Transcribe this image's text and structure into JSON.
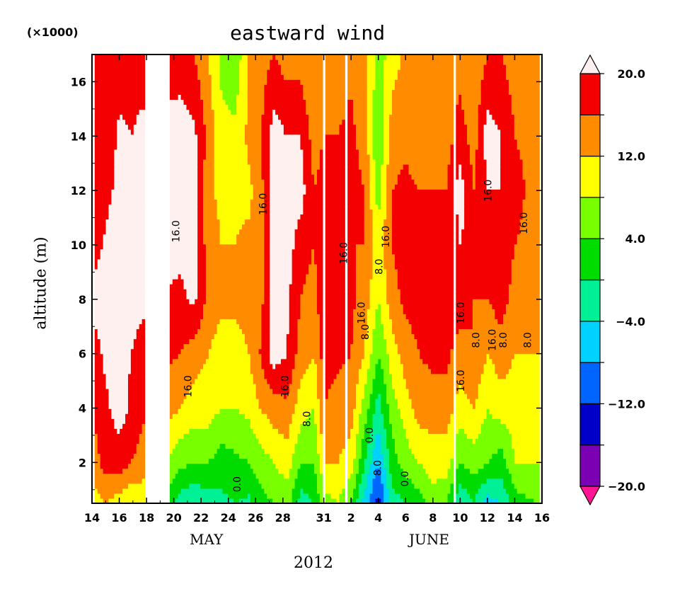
{
  "chart_data": {
    "type": "heatmap",
    "title": "eastward wind",
    "ylabel": "altitude (m)",
    "y_scale_note": "(×1000)",
    "xlabel_year": "2012",
    "months": [
      {
        "label": "MAY",
        "center_day": 23
      },
      {
        "label": "JUNE",
        "center_day": 42
      }
    ],
    "x_range_days": [
      14,
      47
    ],
    "x_ticks": [
      {
        "day": 14,
        "label": "14"
      },
      {
        "day": 16,
        "label": "16"
      },
      {
        "day": 18,
        "label": "18"
      },
      {
        "day": 20,
        "label": "20"
      },
      {
        "day": 22,
        "label": "22"
      },
      {
        "day": 24,
        "label": "24"
      },
      {
        "day": 26,
        "label": "26"
      },
      {
        "day": 28,
        "label": "28"
      },
      {
        "day": 31,
        "label": "31"
      },
      {
        "day": 33,
        "label": "2"
      },
      {
        "day": 35,
        "label": "4"
      },
      {
        "day": 37,
        "label": "6"
      },
      {
        "day": 39,
        "label": "8"
      },
      {
        "day": 41,
        "label": "10"
      },
      {
        "day": 43,
        "label": "12"
      },
      {
        "day": 45,
        "label": "14"
      },
      {
        "day": 47,
        "label": "16"
      }
    ],
    "y_range": [
      0.5,
      17
    ],
    "y_ticks": [
      2,
      4,
      6,
      8,
      10,
      12,
      14,
      16
    ],
    "colorbar": {
      "levels": [
        -24,
        -20,
        -16,
        -12,
        -8,
        -4,
        0,
        4,
        8,
        12,
        16,
        20,
        24
      ],
      "colors": [
        "#ff1493",
        "#7b00b4",
        "#0000c8",
        "#0064ff",
        "#00d2ff",
        "#00f096",
        "#00dc00",
        "#78ff00",
        "#ffff00",
        "#ff8c00",
        "#f50000",
        "#fff0f0"
      ],
      "labels": [
        {
          "value": -20,
          "text": "−20.0"
        },
        {
          "value": -12,
          "text": "−12.0"
        },
        {
          "value": -4,
          "text": "−4.0"
        },
        {
          "value": 4,
          "text": "4.0"
        },
        {
          "value": 12,
          "text": "12.0"
        },
        {
          "value": 20,
          "text": "20.0"
        }
      ]
    },
    "columns": [
      {
        "day": 14.2,
        "profile": [
          10,
          14,
          17,
          18,
          22,
          18,
          17,
          17,
          16
        ]
      },
      {
        "day": 15.0,
        "profile": [
          12,
          18,
          19,
          21,
          22,
          21,
          18,
          16,
          16
        ]
      },
      {
        "day": 16.0,
        "profile": [
          10,
          18,
          22,
          22,
          24,
          24,
          22,
          21,
          18
        ]
      },
      {
        "day": 16.9,
        "profile": [
          8,
          16,
          19,
          20,
          22,
          21,
          22,
          20,
          17
        ]
      },
      {
        "day": 17.7,
        "profile": [
          10,
          14,
          17,
          18,
          21,
          22,
          22,
          22,
          16
        ]
      },
      {
        "day": 20.5,
        "profile": [
          -2,
          5,
          12,
          16,
          19,
          21,
          22,
          22,
          18
        ]
      },
      {
        "day": 21.5,
        "profile": [
          -4,
          4,
          10,
          14,
          21,
          22,
          22,
          21,
          16
        ]
      },
      {
        "day": 22.5,
        "profile": [
          -2,
          4,
          10,
          12,
          15,
          14,
          13,
          15,
          12
        ]
      },
      {
        "day": 23.5,
        "profile": [
          -1,
          2,
          8,
          10,
          13,
          12,
          11,
          9,
          7
        ]
      },
      {
        "day": 24.5,
        "profile": [
          0,
          3,
          8,
          10,
          13,
          12,
          11,
          9,
          5
        ]
      },
      {
        "day": 25.5,
        "profile": [
          -1,
          4,
          9,
          12,
          14,
          13,
          11,
          13,
          12
        ]
      },
      {
        "day": 26.3,
        "profile": [
          2,
          6,
          12,
          16,
          14,
          14,
          14,
          15,
          14
        ]
      },
      {
        "day": 27.3,
        "profile": [
          4,
          8,
          14,
          22,
          22,
          22,
          22,
          22,
          16
        ]
      },
      {
        "day": 28.3,
        "profile": [
          6,
          10,
          15,
          20,
          21,
          22,
          21,
          20,
          14
        ]
      },
      {
        "day": 29.3,
        "profile": [
          -2,
          4,
          10,
          14,
          16,
          18,
          22,
          20,
          14
        ]
      },
      {
        "day": 30.3,
        "profile": [
          0,
          4,
          8,
          12,
          14,
          16,
          16,
          14,
          12
        ]
      },
      {
        "day": 31.0,
        "profile": [
          6,
          12,
          16,
          18,
          20,
          20,
          18,
          16,
          14
        ]
      },
      {
        "day": 32.0,
        "profile": [
          8,
          12,
          14,
          17,
          18,
          17,
          18,
          16,
          14
        ]
      },
      {
        "day": 33.0,
        "profile": [
          4,
          10,
          14,
          16,
          17,
          16,
          18,
          17,
          15
        ]
      },
      {
        "day": 34.0,
        "profile": [
          -6,
          0,
          6,
          12,
          14,
          16,
          16,
          14,
          14
        ]
      },
      {
        "day": 35.0,
        "profile": [
          -14,
          -8,
          -2,
          4,
          8,
          10,
          6,
          4,
          6
        ]
      },
      {
        "day": 36.0,
        "profile": [
          -2,
          2,
          6,
          10,
          14,
          16,
          16,
          14,
          10
        ]
      },
      {
        "day": 37.0,
        "profile": [
          0,
          6,
          10,
          14,
          17,
          19,
          17,
          15,
          13
        ]
      },
      {
        "day": 38.0,
        "profile": [
          2,
          8,
          14,
          16,
          18,
          18,
          16,
          14,
          13
        ]
      },
      {
        "day": 39.0,
        "profile": [
          6,
          10,
          14,
          17,
          18,
          17,
          16,
          14,
          14
        ]
      },
      {
        "day": 40.0,
        "profile": [
          4,
          10,
          14,
          17,
          18,
          16,
          16,
          14,
          14
        ]
      },
      {
        "day": 41.0,
        "profile": [
          -4,
          4,
          10,
          14,
          18,
          20,
          22,
          18,
          14
        ]
      },
      {
        "day": 42.0,
        "profile": [
          0,
          6,
          12,
          16,
          16,
          18,
          16,
          14,
          12
        ]
      },
      {
        "day": 43.0,
        "profile": [
          -6,
          4,
          8,
          12,
          16,
          18,
          20,
          22,
          16
        ]
      },
      {
        "day": 44.0,
        "profile": [
          -4,
          2,
          10,
          14,
          18,
          20,
          20,
          20,
          16
        ]
      },
      {
        "day": 45.0,
        "profile": [
          2,
          8,
          10,
          12,
          14,
          16,
          18,
          16,
          14
        ]
      },
      {
        "day": 46.5,
        "profile": [
          4,
          8,
          10,
          12,
          14,
          14,
          14,
          14,
          12
        ]
      }
    ],
    "profile_altitudes": [
      0.5,
      2,
      4,
      6,
      8,
      10,
      12,
      14,
      17
    ],
    "gaps": [
      {
        "from_day": 17.9,
        "to_day": 19.8
      },
      {
        "from_day": 30.95,
        "to_day": 31.05
      },
      {
        "from_day": 32.6,
        "to_day": 32.75
      },
      {
        "from_day": 40.55,
        "to_day": 40.65
      }
    ],
    "contour_labels": [
      {
        "day": 20.4,
        "alt": 10.5,
        "text": "16.0"
      },
      {
        "day": 26.8,
        "alt": 11.5,
        "text": "16.0"
      },
      {
        "day": 21.3,
        "alt": 4.8,
        "text": "16.0"
      },
      {
        "day": 28.4,
        "alt": 4.8,
        "text": "16.0"
      },
      {
        "day": 30.0,
        "alt": 3.6,
        "text": "8.0"
      },
      {
        "day": 24.9,
        "alt": 1.2,
        "text": "0.0"
      },
      {
        "day": 32.7,
        "alt": 9.7,
        "text": "16.0"
      },
      {
        "day": 34.0,
        "alt": 7.5,
        "text": "16.0"
      },
      {
        "day": 34.3,
        "alt": 6.8,
        "text": "8.0"
      },
      {
        "day": 35.3,
        "alt": 9.2,
        "text": "8.0"
      },
      {
        "day": 35.8,
        "alt": 10.3,
        "text": "16.0"
      },
      {
        "day": 34.6,
        "alt": 3.0,
        "text": "0.0"
      },
      {
        "day": 35.2,
        "alt": 1.8,
        "text": "8.0"
      },
      {
        "day": 37.2,
        "alt": 1.4,
        "text": "0.0"
      },
      {
        "day": 41.3,
        "alt": 7.5,
        "text": "16.0"
      },
      {
        "day": 41.3,
        "alt": 5.0,
        "text": "16.0"
      },
      {
        "day": 42.4,
        "alt": 6.5,
        "text": "8.0"
      },
      {
        "day": 43.3,
        "alt": 12.0,
        "text": "16.0"
      },
      {
        "day": 43.6,
        "alt": 6.5,
        "text": "16.0"
      },
      {
        "day": 44.4,
        "alt": 6.5,
        "text": "8.0"
      },
      {
        "day": 45.9,
        "alt": 10.8,
        "text": "16.0"
      },
      {
        "day": 46.2,
        "alt": 6.5,
        "text": "8.0"
      }
    ]
  }
}
